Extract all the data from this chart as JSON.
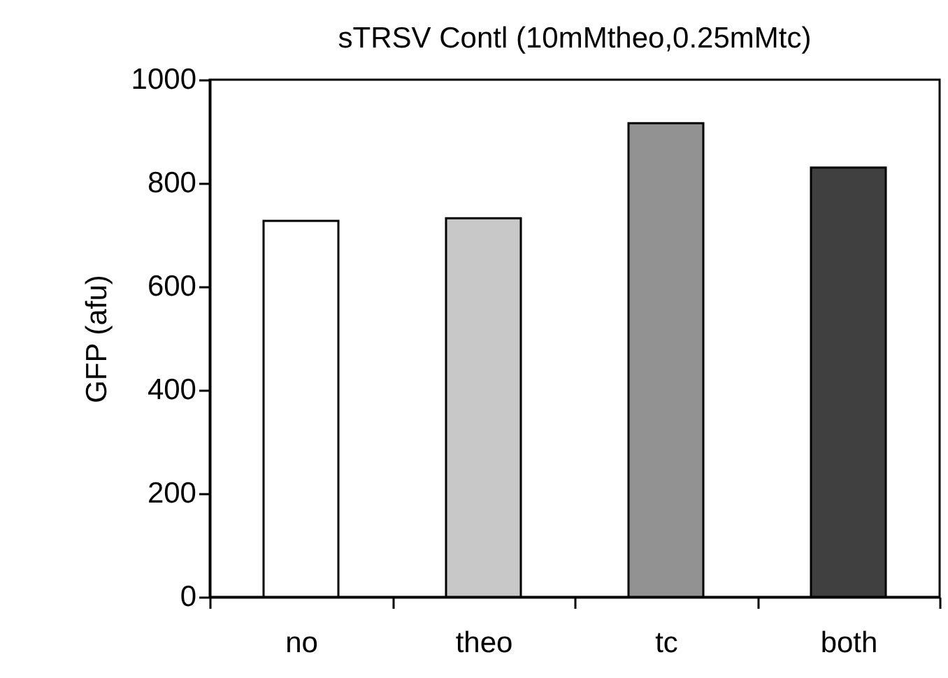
{
  "chart_data": {
    "type": "bar",
    "title": "sTRSV Contl (10mMtheo,0.25mMtc)",
    "ylabel": "GFP (afu)",
    "categories": [
      "no",
      "theo",
      "tc",
      "both"
    ],
    "values": [
      727,
      732,
      916,
      830
    ],
    "colors": [
      "#ffffff",
      "#c8c8c8",
      "#929292",
      "#404040"
    ],
    "ylim": [
      0,
      1000
    ],
    "yticks": [
      0,
      200,
      400,
      600,
      800,
      1000
    ],
    "grid": false,
    "legend": false
  }
}
